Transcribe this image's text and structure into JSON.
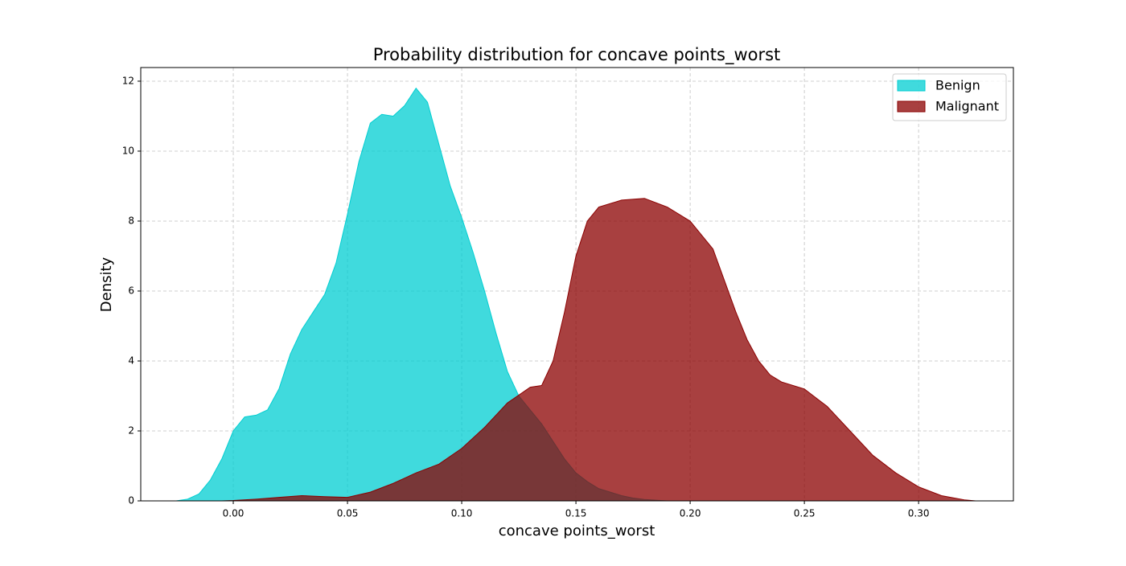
{
  "chart_data": {
    "type": "area",
    "title": "Probability distribution for concave points_worst",
    "x_label": "concave points_worst",
    "y_label": "Density",
    "xlim": [
      -0.0405,
      0.3415
    ],
    "ylim": [
      0,
      12.39
    ],
    "xticks": [
      {
        "value": 0,
        "label": "0.00"
      },
      {
        "value": 0.05,
        "label": "0.05"
      },
      {
        "value": 0.1,
        "label": "0.10"
      },
      {
        "value": 0.15,
        "label": "0.15"
      },
      {
        "value": 0.2,
        "label": "0.20"
      },
      {
        "value": 0.25,
        "label": "0.25"
      },
      {
        "value": 0.3,
        "label": "0.30"
      }
    ],
    "yticks": [
      0,
      2,
      4,
      6,
      8,
      10,
      12
    ],
    "grid": true,
    "legend": "upper right",
    "fill_opacity": 0.75,
    "series": [
      {
        "name": "Benign",
        "color": "#00ced1",
        "x": [
          -0.025,
          -0.02,
          -0.015,
          -0.01,
          -0.005,
          0,
          0.005,
          0.01,
          0.015,
          0.02,
          0.025,
          0.03,
          0.035,
          0.04,
          0.045,
          0.05,
          0.055,
          0.06,
          0.065,
          0.07,
          0.075,
          0.08,
          0.085,
          0.09,
          0.095,
          0.1,
          0.105,
          0.11,
          0.115,
          0.12,
          0.125,
          0.13,
          0.135,
          0.14,
          0.145,
          0.15,
          0.155,
          0.16,
          0.165,
          0.17,
          0.175,
          0.18,
          0.185,
          0.19
        ],
        "values": [
          0,
          0.05,
          0.2,
          0.6,
          1.2,
          2.0,
          2.4,
          2.45,
          2.6,
          3.2,
          4.2,
          4.9,
          5.4,
          5.9,
          6.8,
          8.2,
          9.7,
          10.8,
          11.05,
          11.0,
          11.3,
          11.8,
          11.4,
          10.2,
          9.0,
          8.1,
          7.1,
          6.0,
          4.8,
          3.7,
          3.0,
          2.6,
          2.2,
          1.7,
          1.2,
          0.8,
          0.55,
          0.35,
          0.25,
          0.15,
          0.08,
          0.04,
          0.02,
          0
        ]
      },
      {
        "name": "Malignant",
        "color": "#8b0000",
        "x": [
          -0.005,
          0,
          0.01,
          0.02,
          0.03,
          0.04,
          0.05,
          0.06,
          0.07,
          0.08,
          0.09,
          0.1,
          0.11,
          0.12,
          0.13,
          0.135,
          0.14,
          0.145,
          0.15,
          0.155,
          0.16,
          0.17,
          0.18,
          0.19,
          0.2,
          0.21,
          0.215,
          0.22,
          0.225,
          0.23,
          0.235,
          0.24,
          0.25,
          0.26,
          0.27,
          0.28,
          0.29,
          0.3,
          0.31,
          0.32,
          0.325
        ],
        "values": [
          0,
          0.01,
          0.05,
          0.1,
          0.15,
          0.12,
          0.1,
          0.25,
          0.5,
          0.8,
          1.05,
          1.5,
          2.1,
          2.8,
          3.25,
          3.3,
          4.0,
          5.4,
          7.0,
          8.0,
          8.4,
          8.6,
          8.65,
          8.4,
          8.0,
          7.2,
          6.3,
          5.4,
          4.6,
          4.0,
          3.6,
          3.4,
          3.2,
          2.7,
          2.0,
          1.3,
          0.8,
          0.4,
          0.15,
          0.03,
          0
        ]
      }
    ]
  }
}
